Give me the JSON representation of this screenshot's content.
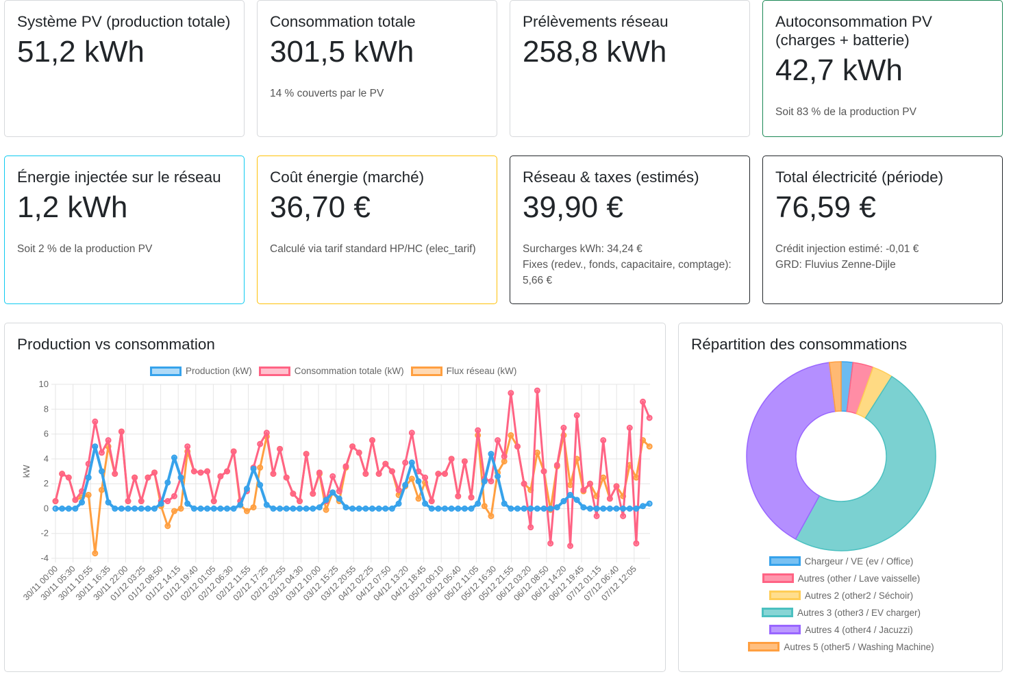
{
  "cards": [
    {
      "title": "Système PV (production totale)",
      "value": "51,2 kWh",
      "sub": []
    },
    {
      "title": "Consommation totale",
      "value": "301,5 kWh",
      "sub": [
        "14 % couverts par le PV"
      ]
    },
    {
      "title": "Prélèvements réseau",
      "value": "258,8 kWh",
      "sub": []
    },
    {
      "title": "Autoconsommation PV (charges + batterie)",
      "value": "42,7 kWh",
      "sub": [
        "Soit 83 % de la production PV"
      ]
    },
    {
      "title": "Énergie injectée sur le réseau",
      "value": "1,2 kWh",
      "sub": [
        "Soit 2 % de la production PV"
      ]
    },
    {
      "title": "Coût énergie (marché)",
      "value": "36,70 €",
      "sub": [
        "Calculé via tarif standard HP/HC (elec_tarif)"
      ]
    },
    {
      "title": "Réseau & taxes (estimés)",
      "value": "39,90 €",
      "sub": [
        "Surcharges kWh: 34,24 €",
        "Fixes (redev., fonds, capacitaire, comptage): 5,66 €"
      ]
    },
    {
      "title": "Total électricité (période)",
      "value": "76,59 €",
      "sub": [
        "Crédit injection estimé: -0,01 €",
        "GRD: Fluvius Zenne-Dijle"
      ]
    }
  ],
  "colors": {
    "green": "#198754",
    "cyan": "#0dcaf0",
    "yellow": "#ffc107",
    "dark": "#212529"
  },
  "chart_data": [
    {
      "type": "line",
      "title": "Production vs consommation",
      "ylabel": "kW",
      "ylim": [
        -4,
        10
      ],
      "yticks": [
        10,
        8,
        6,
        4,
        2,
        0,
        -2,
        -4
      ],
      "grid": true,
      "legend": "top",
      "xticks": [
        "30/11 00:00",
        "30/11 05:30",
        "30/11 10:55",
        "30/11 16:35",
        "30/11 22:00",
        "01/12 03:25",
        "01/12 08:50",
        "01/12 14:15",
        "01/12 19:40",
        "02/12 01:05",
        "02/12 06:30",
        "02/12 11:55",
        "02/12 17:25",
        "02/12 22:55",
        "03/12 04:30",
        "03/12 10:00",
        "03/12 15:25",
        "03/12 20:55",
        "04/12 02:25",
        "04/12 07:50",
        "04/12 13:20",
        "04/12 18:45",
        "05/12 00:10",
        "05/12 05:40",
        "05/12 11:05",
        "05/12 16:30",
        "05/12 21:55",
        "06/12 03:20",
        "06/12 08:50",
        "06/12 14:20",
        "06/12 19:45",
        "07/12 01:15",
        "07/12 06:40",
        "07/12 12:05"
      ],
      "x_step": "2h from 30/11 00:00",
      "series": [
        {
          "name": "Flux réseau (kW)",
          "color": "#ff9f40",
          "values": [
            0.6,
            2.8,
            2.5,
            0.7,
            0.9,
            1.1,
            -3.6,
            1.5,
            5.0,
            2.8,
            6.2,
            0.6,
            2.5,
            0.6,
            2.5,
            2.9,
            0.2,
            -1.4,
            -0.2,
            0.0,
            4.6,
            3.0,
            2.9,
            3.0,
            0.6,
            2.6,
            3.0,
            4.6,
            0.3,
            -0.2,
            0.1,
            3.3,
            5.8,
            2.8,
            4.8,
            2.5,
            1.2,
            0.6,
            4.4,
            1.2,
            2.8,
            -0.1,
            1.3,
            0.6,
            3.3,
            5.0,
            4.5,
            2.8,
            5.5,
            2.8,
            3.6,
            3.0,
            1.1,
            1.8,
            2.4,
            0.8,
            2.1,
            0.6,
            2.8,
            2.8,
            4.0,
            1.0,
            3.8,
            0.9,
            5.9,
            0.2,
            -0.6,
            2.9,
            3.8,
            5.9,
            5.0,
            2.0,
            1.5,
            4.5,
            3.0,
            -0.1,
            3.4,
            5.9,
            1.9,
            4.0,
            1.4,
            2.0,
            1.0,
            2.5,
            0.8,
            1.8,
            1.0,
            3.5,
            2.5,
            5.5,
            5.0
          ]
        },
        {
          "name": "Consommation totale (kW)",
          "color": "#ff6384",
          "values": [
            0.6,
            2.8,
            2.5,
            0.7,
            1.4,
            3.6,
            7.0,
            4.5,
            5.5,
            2.8,
            6.2,
            0.6,
            2.5,
            0.6,
            2.5,
            2.9,
            0.6,
            0.6,
            1.0,
            2.5,
            5.0,
            3.0,
            2.9,
            3.0,
            0.6,
            2.6,
            3.0,
            4.6,
            0.6,
            1.4,
            3.3,
            5.2,
            6.1,
            2.8,
            4.8,
            2.5,
            1.2,
            0.6,
            4.4,
            1.2,
            2.9,
            0.6,
            2.6,
            1.4,
            3.4,
            5.0,
            4.5,
            2.8,
            5.5,
            2.8,
            3.6,
            3.0,
            1.5,
            3.7,
            6.1,
            3.0,
            2.5,
            0.6,
            2.8,
            2.8,
            4.0,
            1.0,
            3.8,
            0.9,
            6.3,
            2.4,
            2.2,
            5.5,
            4.2,
            9.3,
            5.0,
            2.0,
            -1.5,
            9.5,
            3.0,
            -2.8,
            3.5,
            6.5,
            -3.0,
            7.5,
            1.5,
            2.0,
            -0.6,
            5.5,
            0.8,
            1.8,
            -0.6,
            6.5,
            -2.8,
            8.6,
            7.3
          ]
        },
        {
          "name": "Production (kW)",
          "color": "#36a2eb",
          "values": [
            0,
            0,
            0,
            0,
            0.5,
            2.5,
            5.0,
            3.0,
            0.5,
            0,
            0,
            0,
            0,
            0,
            0,
            0,
            0.4,
            2.1,
            4.1,
            2.5,
            0.4,
            0,
            0,
            0,
            0,
            0,
            0,
            0,
            0.3,
            1.6,
            3.2,
            1.9,
            0.3,
            0,
            0,
            0,
            0,
            0,
            0,
            0,
            0.1,
            0.7,
            1.3,
            0.8,
            0.1,
            0,
            0,
            0,
            0,
            0,
            0,
            0,
            0.4,
            1.9,
            3.7,
            2.2,
            0.4,
            0,
            0,
            0,
            0,
            0,
            0,
            0,
            0.4,
            2.2,
            4.4,
            2.6,
            0.4,
            0,
            0,
            0,
            0,
            0,
            0,
            0,
            0.1,
            0.6,
            1.1,
            0.7,
            0.1,
            0,
            0,
            0,
            0,
            0,
            0,
            0,
            0.0,
            0.2,
            0.4
          ]
        }
      ]
    },
    {
      "type": "pie",
      "title": "Répartition des consommations",
      "legend": "bottom",
      "labels": [
        "Chargeur / VE (ev / Office)",
        "Autres (other / Lave vaisselle)",
        "Autres 2 (other2 / Séchoir)",
        "Autres 3 (other3 / EV charger)",
        "Autres 4 (other4 / Jacuzzi)",
        "Autres 5 (other5 / Washing Machine)"
      ],
      "values": [
        2,
        3.5,
        3.5,
        49,
        40,
        2
      ],
      "colors": [
        "#36a2eb",
        "#ff6384",
        "#ffcd56",
        "#4bc0c0",
        "#9966ff",
        "#ff9f40"
      ]
    }
  ]
}
